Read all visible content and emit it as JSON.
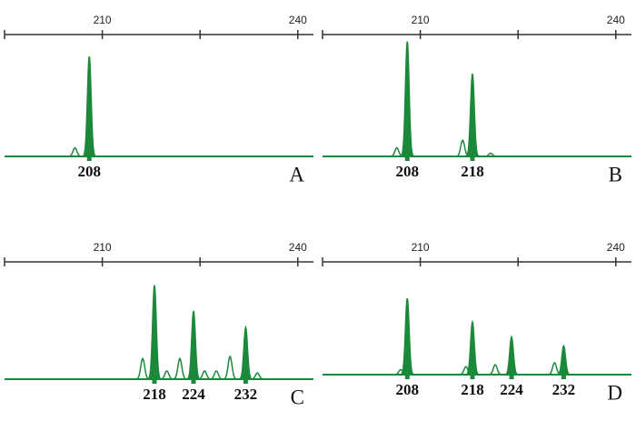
{
  "chart_data": [
    {
      "type": "electropherogram",
      "panel": "A",
      "xlim": [
        195,
        242.4
      ],
      "xticks": [
        210,
        240
      ],
      "minor_xticks": [
        195,
        225
      ],
      "ylim": [
        0,
        110
      ],
      "color": "#1a8a3a",
      "peaks": {
        "x": [
          205.8,
          208
        ],
        "heights": [
          8,
          93
        ]
      },
      "called_alleles": [
        208
      ]
    },
    {
      "type": "electropherogram",
      "panel": "B",
      "xlim": [
        195,
        242.4
      ],
      "xticks": [
        210,
        240
      ],
      "minor_xticks": [
        195,
        225
      ],
      "ylim": [
        0,
        110
      ],
      "color": "#1a8a3a",
      "peaks": {
        "x": [
          206.4,
          208,
          216.5,
          218,
          220.8
        ],
        "heights": [
          8,
          107,
          15,
          77,
          3
        ]
      },
      "called_alleles": [
        208,
        218
      ]
    },
    {
      "type": "electropherogram",
      "panel": "C",
      "xlim": [
        195,
        242.4
      ],
      "xticks": [
        210,
        240
      ],
      "minor_xticks": [
        195,
        225
      ],
      "ylim": [
        0,
        110
      ],
      "color": "#1a8a3a",
      "peaks": {
        "x": [
          216.2,
          218,
          219.9,
          221.9,
          224,
          225.7,
          227.5,
          229.6,
          232,
          233.8
        ],
        "heights": [
          20,
          91,
          8,
          20,
          66,
          8,
          8,
          22,
          50,
          6
        ]
      },
      "called_alleles": [
        218,
        224,
        232
      ]
    },
    {
      "type": "electropherogram",
      "panel": "D",
      "xlim": [
        195,
        242.4
      ],
      "xticks": [
        210,
        240
      ],
      "minor_xticks": [
        195,
        225
      ],
      "ylim": [
        0,
        110
      ],
      "color": "#1a8a3a",
      "peaks": {
        "x": [
          207,
          208,
          217,
          218,
          221.5,
          224,
          230.6,
          232
        ],
        "heights": [
          5,
          77,
          8,
          53,
          10,
          38,
          12,
          29
        ]
      },
      "called_alleles": [
        208,
        218,
        224,
        232
      ]
    }
  ]
}
